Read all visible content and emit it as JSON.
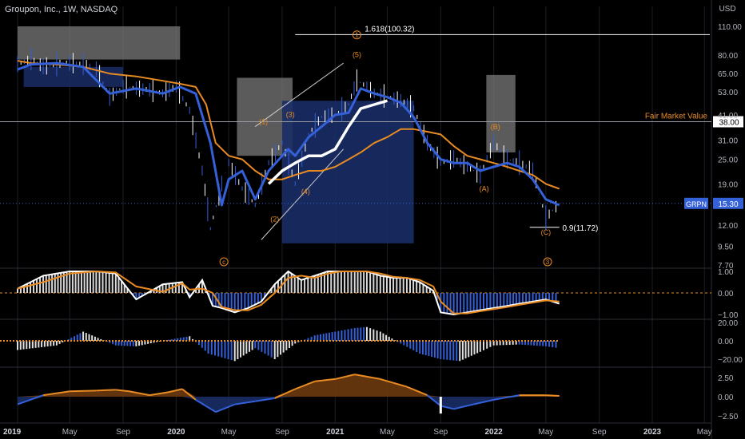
{
  "header": {
    "title": "Groupon, Inc., 1W, NASDAQ"
  },
  "currency": "USD",
  "chart_data": {
    "type": "line",
    "title": "Groupon, Inc., 1W, NASDAQ",
    "y_scale": "log",
    "price_axis_ticks": [
      "110.00",
      "80.00",
      "65.00",
      "53.00",
      "41.00",
      "31.00",
      "25.00",
      "19.00",
      "15.30",
      "12.00",
      "9.50",
      "7.70"
    ],
    "x_tick_labels": [
      "2019",
      "May",
      "Sep",
      "2020",
      "May",
      "Sep",
      "2021",
      "May",
      "Sep",
      "2022",
      "May",
      "Sep",
      "2023",
      "May"
    ],
    "x_ticks": [
      "2019-01-01",
      "2019-05-01",
      "2019-09-01",
      "2020-01-01",
      "2020-05-01",
      "2020-09-01",
      "2021-01-01",
      "2021-05-01",
      "2021-09-01",
      "2022-01-01",
      "2022-05-01",
      "2022-09-01",
      "2023-01-01",
      "2023-05-01"
    ],
    "price": {
      "x": [
        "2019-01-01",
        "2019-02-01",
        "2019-03-01",
        "2019-04-01",
        "2019-05-01",
        "2019-06-01",
        "2019-07-01",
        "2019-08-01",
        "2019-09-01",
        "2019-10-01",
        "2019-11-01",
        "2019-12-01",
        "2020-01-01",
        "2020-02-01",
        "2020-03-01",
        "2020-03-20",
        "2020-04-15",
        "2020-05-01",
        "2020-06-01",
        "2020-07-01",
        "2020-08-01",
        "2020-09-01",
        "2020-10-01",
        "2020-11-01",
        "2020-12-01",
        "2021-01-01",
        "2021-02-01",
        "2021-02-20",
        "2021-03-15",
        "2021-04-01",
        "2021-05-01",
        "2021-06-01",
        "2021-07-01",
        "2021-08-01",
        "2021-09-01",
        "2021-10-01",
        "2021-11-01",
        "2021-12-01",
        "2022-01-01",
        "2022-02-01",
        "2022-03-01",
        "2022-04-01",
        "2022-05-01",
        "2022-06-01"
      ],
      "close": [
        72,
        76,
        70,
        72,
        73,
        72,
        68,
        50,
        56,
        55,
        54,
        52,
        56,
        43,
        22,
        11.5,
        19,
        24,
        18,
        15,
        24,
        30,
        19,
        33,
        40,
        41,
        46,
        60,
        56,
        52,
        50,
        48,
        44,
        30,
        24,
        25,
        23,
        21,
        30,
        25,
        24,
        22,
        13,
        15.3
      ]
    },
    "series": [
      {
        "name": "EMA fast",
        "x": [
          "2019-01-01",
          "2019-02-01",
          "2019-04-01",
          "2019-06-01",
          "2019-08-01",
          "2019-10-01",
          "2019-12-01",
          "2020-01-10",
          "2020-02-15",
          "2020-03-20",
          "2020-04-15",
          "2020-05-01",
          "2020-06-01",
          "2020-07-01",
          "2020-08-01",
          "2020-09-15",
          "2020-10-01",
          "2020-11-01",
          "2020-12-01",
          "2021-01-01",
          "2021-02-01",
          "2021-03-01",
          "2021-04-01",
          "2021-05-01",
          "2021-06-01",
          "2021-07-01",
          "2021-08-01",
          "2021-09-01",
          "2021-10-01",
          "2021-11-01",
          "2021-12-01",
          "2022-01-01",
          "2022-02-01",
          "2022-03-01",
          "2022-04-01",
          "2022-05-01",
          "2022-06-01"
        ],
        "values": [
          68,
          72,
          73,
          70,
          52,
          55,
          52,
          56,
          52,
          30,
          15,
          20,
          22,
          16,
          22,
          28,
          26,
          32,
          36,
          41,
          42,
          55,
          52,
          50,
          47,
          40,
          30,
          25,
          24,
          24,
          22,
          23,
          24,
          23,
          20,
          16,
          15
        ]
      },
      {
        "name": "EMA slow",
        "x": [
          "2019-01-01",
          "2019-02-01",
          "2019-04-01",
          "2019-06-01",
          "2019-08-01",
          "2019-10-01",
          "2019-12-01",
          "2020-01-10",
          "2020-02-15",
          "2020-03-10",
          "2020-04-01",
          "2020-05-01",
          "2020-06-01",
          "2020-07-01",
          "2020-08-01",
          "2020-09-01",
          "2020-10-01",
          "2020-11-01",
          "2020-12-01",
          "2021-01-01",
          "2021-02-01",
          "2021-03-01",
          "2021-04-01",
          "2021-05-01",
          "2021-06-01",
          "2021-07-01",
          "2021-08-01",
          "2021-09-01",
          "2021-10-01",
          "2021-11-01",
          "2021-12-01",
          "2022-01-01",
          "2022-02-01",
          "2022-03-01",
          "2022-04-01",
          "2022-05-01",
          "2022-06-01"
        ],
        "values": [
          75,
          73,
          72,
          70,
          65,
          63,
          60,
          58,
          56,
          46,
          30,
          26,
          25,
          22,
          20,
          20,
          21,
          22,
          22,
          23,
          25,
          27,
          30,
          32,
          35,
          35,
          34,
          33,
          29,
          26,
          25,
          24,
          23,
          22,
          21,
          19,
          18
        ]
      },
      {
        "name": "Trend MA",
        "x": [
          "2020-08-01",
          "2020-09-01",
          "2020-10-01",
          "2020-11-01",
          "2020-12-01",
          "2021-01-01",
          "2021-02-01",
          "2021-03-01",
          "2021-04-01",
          "2021-05-01"
        ],
        "values": [
          19,
          22,
          24,
          26,
          26,
          28,
          36,
          44,
          46,
          48
        ]
      }
    ],
    "levels": [
      {
        "label": "1.618(100.32)",
        "value": 100.32
      },
      {
        "label": "Fair Market Value",
        "value": 38.0
      },
      {
        "label": "0.9(11.72)",
        "value": 11.72
      }
    ],
    "current_price": {
      "label": "GRPN",
      "value": "15.30"
    },
    "wave_labels": [
      {
        "text": "(1)",
        "x": "2020-07-20",
        "y": 37
      },
      {
        "text": "(2)",
        "x": "2020-08-15",
        "y": 12.5
      },
      {
        "text": "(3)",
        "x": "2020-09-20",
        "y": 40
      },
      {
        "text": "(4)",
        "x": "2020-10-25",
        "y": 17
      },
      {
        "text": "(5)",
        "x": "2021-02-20",
        "y": 78
      },
      {
        "text": "(A)",
        "x": "2021-12-10",
        "y": 17.5
      },
      {
        "text": "(B)",
        "x": "2022-01-05",
        "y": 35
      },
      {
        "text": "(C)",
        "x": "2022-05-01",
        "y": 10.8
      }
    ],
    "circle_labels": [
      {
        "text": "1",
        "x": "2021-02-20",
        "y": 100
      },
      {
        "text": "c",
        "x": "2020-04-20",
        "y": 7.7
      },
      {
        "text": "3",
        "x": "2022-05-05",
        "y": 7.7
      }
    ],
    "macd": {
      "ticks": [
        "1.00",
        "0.00",
        "−1.00"
      ],
      "x": [
        "2019-01-01",
        "2019-03-01",
        "2019-05-01",
        "2019-07-01",
        "2019-08-15",
        "2019-10-01",
        "2019-12-01",
        "2020-01-15",
        "2020-02-01",
        "2020-03-01",
        "2020-03-25",
        "2020-04-15",
        "2020-05-15",
        "2020-06-15",
        "2020-07-15",
        "2020-08-15",
        "2020-09-15",
        "2020-10-15",
        "2020-11-15",
        "2020-12-15",
        "2021-01-15",
        "2021-02-15",
        "2021-03-15",
        "2021-04-15",
        "2021-05-15",
        "2021-06-15",
        "2021-07-15",
        "2021-08-15",
        "2021-09-01",
        "2021-10-01",
        "2021-11-01",
        "2021-12-01",
        "2022-01-01",
        "2022-02-01",
        "2022-03-01",
        "2022-04-01",
        "2022-05-01",
        "2022-06-01"
      ],
      "values": [
        0.2,
        0.8,
        1.0,
        1.0,
        0.9,
        -0.3,
        0.4,
        0.5,
        -0.2,
        0.6,
        -0.6,
        -0.7,
        -0.9,
        -0.7,
        -0.4,
        0.4,
        1.0,
        0.6,
        0.8,
        1.0,
        1.0,
        1.0,
        1.0,
        0.8,
        0.7,
        0.7,
        0.5,
        0.1,
        -0.9,
        -1.0,
        -0.9,
        -0.8,
        -0.7,
        -0.6,
        -0.5,
        -0.4,
        -0.3,
        -0.5
      ]
    },
    "momentum": {
      "ticks": [
        "20.00",
        "0.00",
        "−20.00"
      ],
      "x": [
        "2019-01-01",
        "2019-04-01",
        "2019-06-01",
        "2019-08-15",
        "2019-10-01",
        "2019-12-01",
        "2020-02-01",
        "2020-03-15",
        "2020-04-15",
        "2020-05-15",
        "2020-07-01",
        "2020-08-15",
        "2020-10-01",
        "2020-11-15",
        "2021-01-01",
        "2021-02-15",
        "2021-03-15",
        "2021-04-15",
        "2021-06-01",
        "2021-07-15",
        "2021-09-01",
        "2021-10-15",
        "2021-12-01",
        "2022-01-01",
        "2022-03-01",
        "2022-05-01",
        "2022-06-01"
      ],
      "values": [
        -10,
        -5,
        10,
        -5,
        -6,
        0,
        5,
        -14,
        -18,
        -22,
        -8,
        -20,
        -3,
        6,
        10,
        14,
        15,
        10,
        -3,
        -14,
        -20,
        -22,
        -12,
        -5,
        -4,
        -6,
        -8
      ]
    },
    "oscillator": {
      "ticks": [
        "2.50",
        "0.00",
        "−2.50"
      ],
      "x": [
        "2019-01-01",
        "2019-03-01",
        "2019-05-01",
        "2019-07-01",
        "2019-08-15",
        "2019-09-15",
        "2019-11-01",
        "2019-12-15",
        "2020-01-15",
        "2020-02-15",
        "2020-04-01",
        "2020-05-15",
        "2020-07-01",
        "2020-08-15",
        "2020-10-01",
        "2020-11-15",
        "2021-01-01",
        "2021-02-15",
        "2021-04-15",
        "2021-06-15",
        "2021-08-01",
        "2021-09-01",
        "2021-10-01",
        "2021-11-15",
        "2022-01-01",
        "2022-03-01",
        "2022-05-01",
        "2022-06-01"
      ],
      "values": [
        -1.0,
        0.2,
        0.7,
        0.8,
        0.9,
        0.7,
        0.2,
        0.6,
        1.0,
        -0.4,
        -2.0,
        -1.0,
        -0.6,
        -0.2,
        1.0,
        2.0,
        2.3,
        2.9,
        2.3,
        1.3,
        0.2,
        -1.2,
        -1.6,
        -1.0,
        -0.4,
        0.2,
        0.2,
        0.1
      ]
    }
  },
  "colors": {
    "background": "#000000",
    "price_blue": "#3460d8",
    "orange": "#e88b22",
    "white": "#ffffff",
    "grid": "#1c1f26",
    "zone_blue": "#1a2d66",
    "zone_gray": "#7a7a7a",
    "axis_text": "#b2b5be"
  }
}
